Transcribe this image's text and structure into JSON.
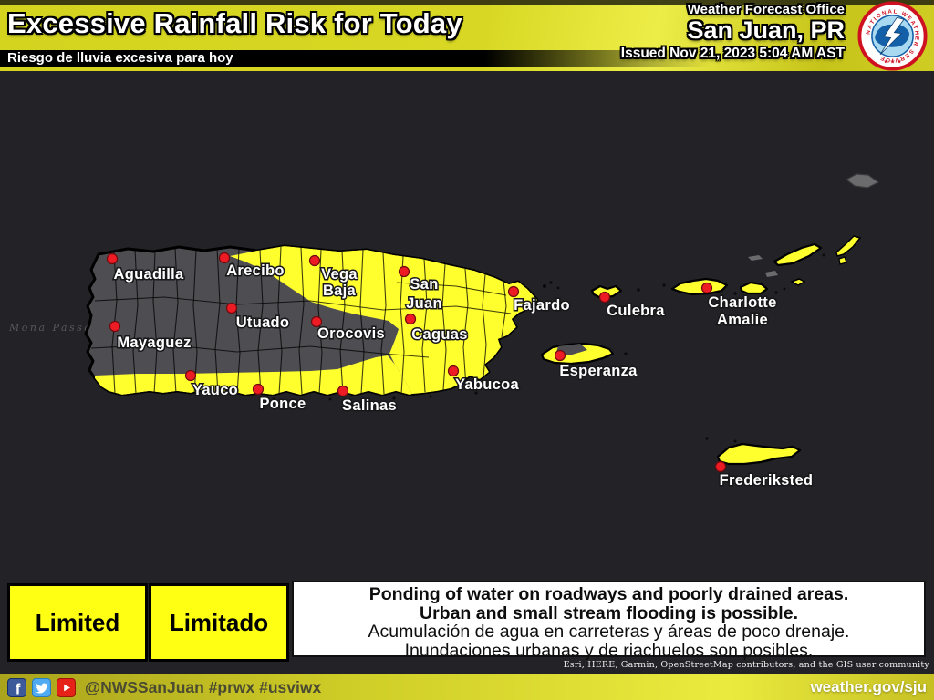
{
  "header": {
    "title": "Excessive Rainfall Risk for Today",
    "subtitle_es": "Riesgo de lluvia excesiva para hoy",
    "office_line1": "Weather Forecast Office",
    "office_line2": "San Juan, PR",
    "issued": "Issued Nov 21, 2023 5:04 AM AST",
    "logo": {
      "ring_text": "NATIONAL WEATHER SERVICE",
      "stars": "★ ★ ★"
    }
  },
  "map": {
    "water_label": "Mona Passage",
    "risk_colors": {
      "limited": "#FFFF2E",
      "no_risk_gray": "#4E4E52",
      "background": "#232227",
      "dot_red": "#ED1C24"
    },
    "cities": [
      {
        "name": "Aguadilla",
        "dot": [
          123,
          284
        ],
        "label": [
          [
            "Aguadilla",
            163,
            306
          ]
        ]
      },
      {
        "name": "Arecibo",
        "dot": [
          246,
          283
        ],
        "label": [
          [
            "Arecibo",
            280,
            302
          ]
        ]
      },
      {
        "name": "Vega Baja",
        "dot": [
          345,
          286
        ],
        "label": [
          [
            "Vega",
            372,
            306
          ],
          [
            "Baja",
            372,
            324
          ]
        ]
      },
      {
        "name": "Utuado",
        "dot": [
          254,
          338
        ],
        "label": [
          [
            "Utuado",
            288,
            359
          ]
        ]
      },
      {
        "name": "Mayaguez",
        "dot": [
          126,
          358
        ],
        "label": [
          [
            "Mayaguez",
            169,
            381
          ]
        ]
      },
      {
        "name": "Orocovis",
        "dot": [
          347,
          353
        ],
        "label": [
          [
            "Orocovis",
            385,
            371
          ]
        ]
      },
      {
        "name": "Yauco",
        "dot": [
          209,
          412
        ],
        "label": [
          [
            "Yauco",
            236,
            433
          ]
        ]
      },
      {
        "name": "Ponce",
        "dot": [
          283,
          427
        ],
        "label": [
          [
            "Ponce",
            310,
            448
          ]
        ]
      },
      {
        "name": "Salinas",
        "dot": [
          376,
          429
        ],
        "label": [
          [
            "Salinas",
            405,
            450
          ]
        ]
      },
      {
        "name": "San Juan",
        "dot": [
          443,
          298
        ],
        "label": [
          [
            "San",
            465,
            317
          ],
          [
            "Juan",
            465,
            338
          ]
        ]
      },
      {
        "name": "Caguas",
        "dot": [
          450,
          350
        ],
        "label": [
          [
            "Caguas",
            482,
            372
          ]
        ]
      },
      {
        "name": "Fajardo",
        "dot": [
          563,
          320
        ],
        "label": [
          [
            "Fajardo",
            594,
            340
          ]
        ]
      },
      {
        "name": "Yabucoa",
        "dot": [
          497,
          407
        ],
        "label": [
          [
            "Yabucoa",
            534,
            427
          ]
        ]
      },
      {
        "name": "Culebra",
        "dot": [
          663,
          326
        ],
        "label": [
          [
            "Culebra",
            697,
            346
          ]
        ]
      },
      {
        "name": "Esperanza",
        "dot": [
          614,
          390
        ],
        "label": [
          [
            "Esperanza",
            656,
            412
          ]
        ]
      },
      {
        "name": "Charlotte Amalie",
        "dot": [
          775,
          316
        ],
        "label": [
          [
            "Charlotte",
            814,
            337
          ],
          [
            "Amalie",
            814,
            356
          ]
        ]
      },
      {
        "name": "Frederiksted",
        "dot": [
          790,
          512
        ],
        "label": [
          [
            "Frederiksted",
            840,
            532
          ]
        ]
      }
    ],
    "attribution": "Esri, HERE, Garmin, OpenStreetMap contributors, and the GIS user community"
  },
  "legend": {
    "en": "Limited",
    "es": "Limitado"
  },
  "statement": {
    "en_line1": "Ponding of water on roadways and poorly drained areas.",
    "en_line2": "Urban and small stream flooding is possible.",
    "es_line1": "Acumulación de agua en carreteras y áreas de poco drenaje.",
    "es_line2": "Inundaciones urbanas y de riachuelos son posibles."
  },
  "footer": {
    "handle": "@NWSSanJuan #prwx #usviwx",
    "url": "weather.gov/sju",
    "social": [
      "facebook-icon",
      "twitter-icon",
      "youtube-icon"
    ]
  }
}
